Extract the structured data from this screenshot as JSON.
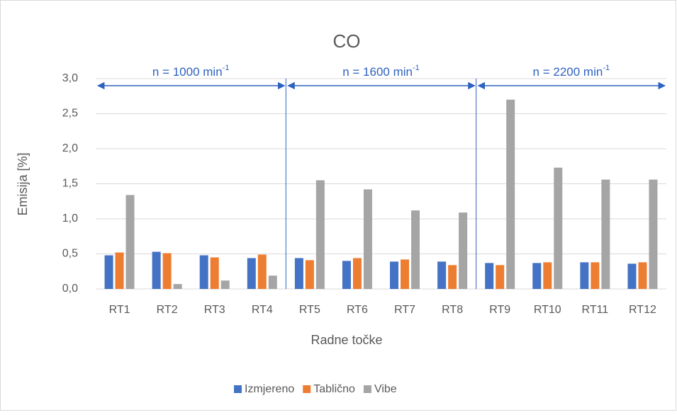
{
  "chart_data": {
    "type": "bar",
    "title": "CO",
    "x_label": "Radne točke",
    "y_label": "Emisija [%]",
    "categories": [
      "RT1",
      "RT2",
      "RT3",
      "RT4",
      "RT5",
      "RT6",
      "RT7",
      "RT8",
      "RT9",
      "RT10",
      "RT11",
      "RT12"
    ],
    "series": [
      {
        "name": "Izmjereno",
        "color": "#4472c4",
        "values": [
          0.48,
          0.53,
          0.48,
          0.44,
          0.44,
          0.4,
          0.39,
          0.39,
          0.37,
          0.37,
          0.38,
          0.36
        ]
      },
      {
        "name": "Tablično",
        "color": "#ed7d31",
        "values": [
          0.52,
          0.51,
          0.45,
          0.49,
          0.41,
          0.44,
          0.42,
          0.34,
          0.34,
          0.38,
          0.38,
          0.38
        ]
      },
      {
        "name": "Vibe",
        "color": "#a5a5a5",
        "values": [
          1.34,
          0.07,
          0.12,
          0.19,
          1.55,
          1.42,
          1.12,
          1.09,
          2.7,
          1.73,
          1.56,
          1.56
        ]
      }
    ],
    "ylim": [
      0,
      3
    ],
    "yticks": [
      {
        "value": 0,
        "label": "0,0"
      },
      {
        "value": 0.5,
        "label": "0,5"
      },
      {
        "value": 1,
        "label": "1,0"
      },
      {
        "value": 1.5,
        "label": "1,5"
      },
      {
        "value": 2,
        "label": "2,0"
      },
      {
        "value": 2.5,
        "label": "2,5"
      },
      {
        "value": 3,
        "label": "3,0"
      }
    ],
    "grid": true,
    "legend": "bottom",
    "annotations": [
      {
        "text": "n = 1000 min",
        "sup": "-1"
      },
      {
        "text": "n = 1600 min",
        "sup": "-1"
      },
      {
        "text": "n = 2200 min",
        "sup": "-1"
      }
    ]
  }
}
